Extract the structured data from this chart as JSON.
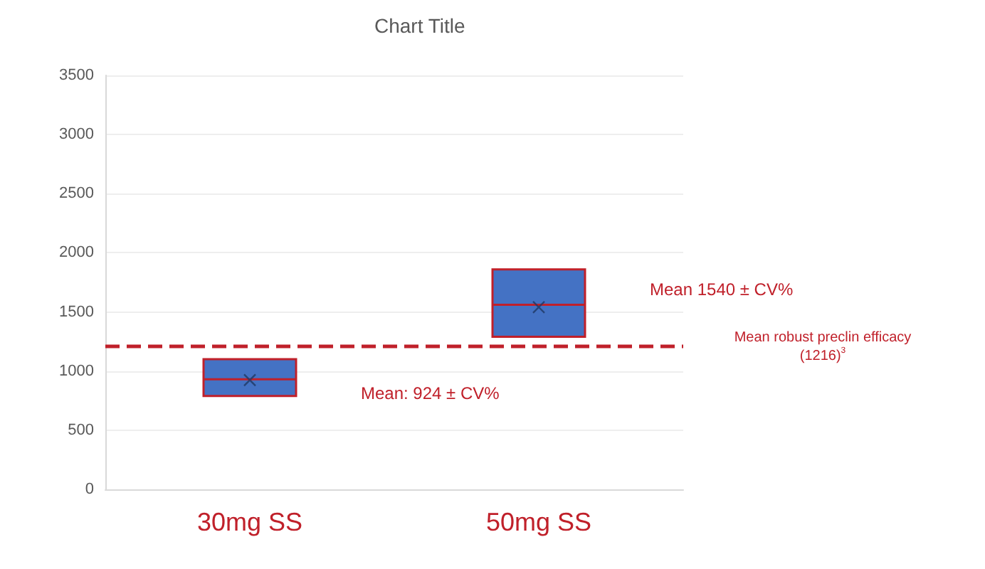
{
  "chart_data": {
    "type": "box",
    "title": "Chart Title",
    "categories": [
      "30mg SS",
      "50mg SS"
    ],
    "series": [
      {
        "color": "#4472c4",
        "boxes": [
          {
            "low": 790,
            "q1": 790,
            "median": 930,
            "q3": 1100,
            "high": 1100,
            "mean": 924
          },
          {
            "low": 1290,
            "q1": 1290,
            "median": 1560,
            "q3": 1860,
            "high": 1860,
            "mean": 1540
          }
        ]
      }
    ],
    "ylim": [
      0,
      3500
    ],
    "yticks": [
      0,
      500,
      1000,
      1500,
      2000,
      2500,
      3000,
      3500
    ],
    "grid": "y",
    "ref_lines": [
      {
        "axis": "y",
        "value": 1216,
        "label": "Mean robust preclin efficacy (1216)$^{3}$",
        "color": "#c0202a",
        "line_style": "dashed"
      }
    ],
    "annotations": [
      "Mean: 924 ± CV%",
      "Mean 1540 ± CV%"
    ]
  }
}
